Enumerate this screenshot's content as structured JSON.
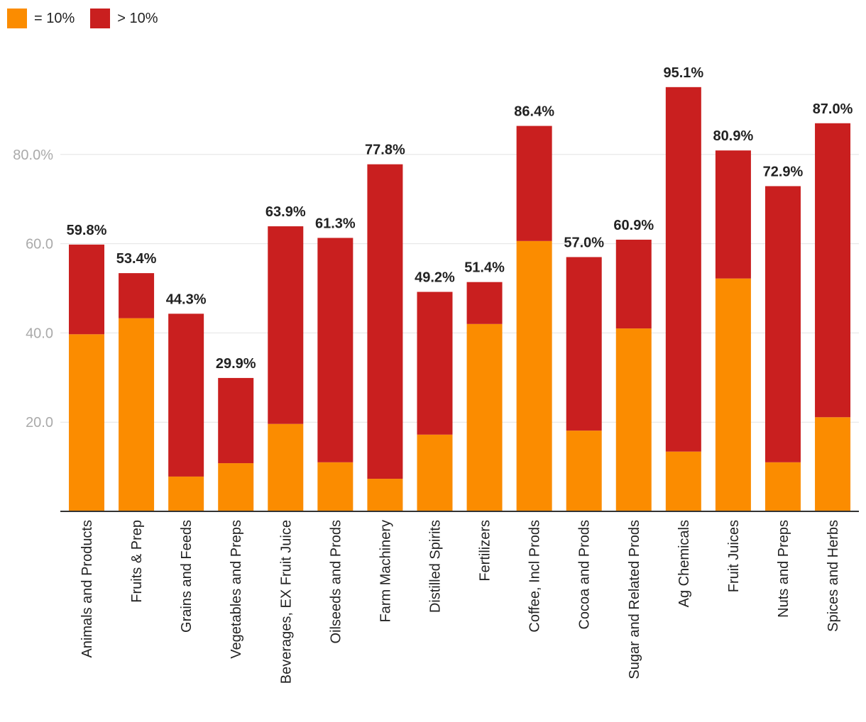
{
  "legend": [
    {
      "label": "= 10%",
      "color": "#fb8c00"
    },
    {
      "label": "> 10%",
      "color": "#c91f1f"
    }
  ],
  "chart_data": {
    "type": "bar",
    "stacked": true,
    "categories": [
      "Animals and Products",
      "Fruits & Prep",
      "Grains and Feeds",
      "Vegetables and Preps",
      "Beverages, EX Fruit Juice",
      "Oilseeds and Prods",
      "Farm Machinery",
      "Distilled Spirits",
      "Fertilizers",
      "Coffee, Incl Prods",
      "Cocoa and Prods",
      "Sugar and Related Prods",
      "Ag Chemicals",
      "Fruit Juices",
      "Nuts and Preps",
      "Spices and Herbs"
    ],
    "series": [
      {
        "name": "= 10%",
        "color": "#fb8c00",
        "values": [
          39.7,
          43.3,
          7.8,
          10.8,
          19.6,
          11.0,
          7.3,
          17.2,
          42.0,
          60.6,
          18.1,
          41.0,
          13.4,
          52.2,
          11.0,
          21.1
        ]
      },
      {
        "name": "> 10%",
        "color": "#c91f1f",
        "values": [
          20.1,
          10.1,
          36.5,
          19.1,
          44.3,
          50.3,
          70.5,
          32.0,
          9.4,
          25.8,
          38.9,
          19.9,
          81.7,
          28.7,
          61.9,
          65.9
        ]
      }
    ],
    "totals": [
      "59.8%",
      "53.4%",
      "44.3%",
      "29.9%",
      "63.9%",
      "61.3%",
      "77.8%",
      "49.2%",
      "51.4%",
      "86.4%",
      "57.0%",
      "60.9%",
      "95.1%",
      "80.9%",
      "72.9%",
      "87.0%"
    ],
    "yticks": [
      "20.0",
      "40.0",
      "60.0",
      "80.0%"
    ],
    "ytick_values": [
      20,
      40,
      60,
      80
    ],
    "ylim": [
      0,
      100
    ],
    "grid": true,
    "legend_position": "top-left"
  }
}
